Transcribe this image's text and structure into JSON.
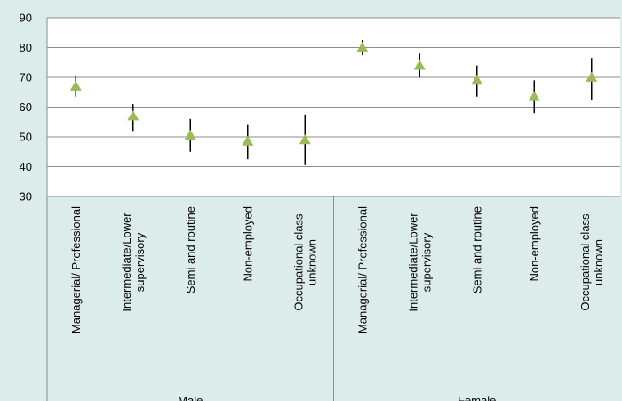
{
  "chart_data": {
    "type": "scatter",
    "title": "",
    "xlabel": "",
    "ylabel": "",
    "ylim": [
      30,
      90
    ],
    "yticks": [
      30,
      40,
      50,
      60,
      70,
      80,
      90
    ],
    "grid": true,
    "marker": "triangle",
    "colors": {
      "background": "#dcecea",
      "plot_area": "#ffffff",
      "gridline": "#8c8c8c",
      "axis": "#8c8c8c",
      "marker": "#9bbb59",
      "error_bar": "#000000"
    },
    "groups": [
      {
        "name": "Male",
        "categories": [
          {
            "label": "Managerial/ Professional",
            "value": 67,
            "low": 63.5,
            "high": 70.5
          },
          {
            "label": "Intermediate/Lower supervisory",
            "value": 57,
            "low": 52,
            "high": 61
          },
          {
            "label": "Semi and routine",
            "value": 50.5,
            "low": 45,
            "high": 56
          },
          {
            "label": "Non-employed",
            "value": 48.5,
            "low": 42.5,
            "high": 54
          },
          {
            "label": "Occupational class unknown",
            "value": 49,
            "low": 40.5,
            "high": 57.5
          }
        ]
      },
      {
        "name": "Female",
        "categories": [
          {
            "label": "Managerial/ Professional",
            "value": 80,
            "low": 77.5,
            "high": 82.5
          },
          {
            "label": "Intermediate/Lower supervisory",
            "value": 74,
            "low": 70,
            "high": 78
          },
          {
            "label": "Semi and routine",
            "value": 69,
            "low": 63.5,
            "high": 74
          },
          {
            "label": "Non-employed",
            "value": 63.5,
            "low": 58,
            "high": 69
          },
          {
            "label": "Occupational class unknown",
            "value": 70,
            "low": 62.5,
            "high": 76.5
          }
        ]
      }
    ]
  }
}
